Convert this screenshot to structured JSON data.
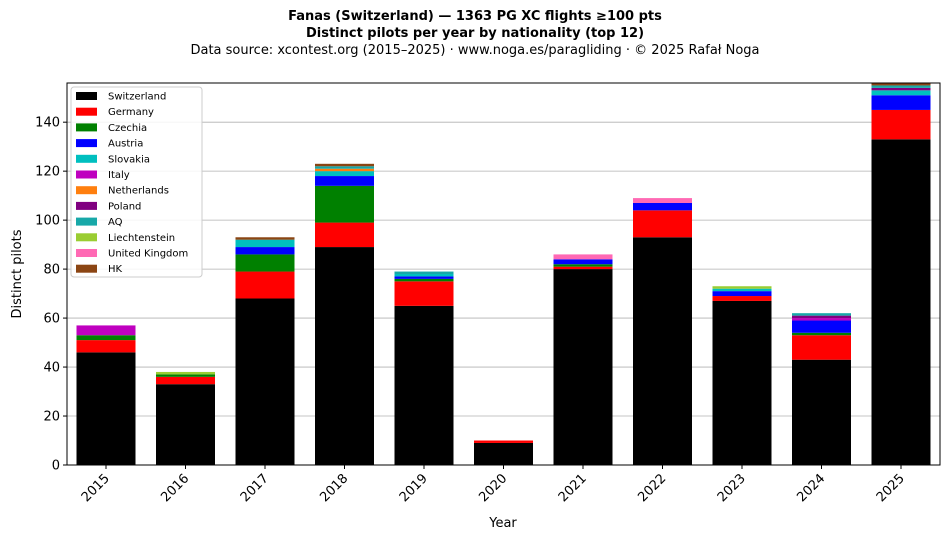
{
  "chart_data": {
    "type": "bar",
    "stacked": true,
    "title": "Fanas (Switzerland)  —  1363 PG XC flights ≥100 pts",
    "subtitle": "Distinct pilots per year by nationality (top 12)",
    "source": "Data source: xcontest.org (2015–2025)  ·  www.noga.es/paragliding  ·  © 2025 Rafał Noga",
    "xlabel": "Year",
    "ylabel": "Distinct pilots",
    "ylim": [
      0,
      156
    ],
    "yticks": [
      0,
      20,
      40,
      60,
      80,
      100,
      120,
      140
    ],
    "grid": "horizontal",
    "legend_position": "top-left",
    "categories": [
      "2015",
      "2016",
      "2017",
      "2018",
      "2019",
      "2020",
      "2021",
      "2022",
      "2023",
      "2024",
      "2025"
    ],
    "series": [
      {
        "name": "Switzerland",
        "color": "#000000",
        "values": [
          46,
          33,
          68,
          89,
          65,
          9,
          80,
          93,
          67,
          43,
          133
        ]
      },
      {
        "name": "Germany",
        "color": "#ff0000",
        "values": [
          5,
          3,
          11,
          10,
          10,
          1,
          1,
          11,
          2,
          10,
          12
        ]
      },
      {
        "name": "Czechia",
        "color": "#008000",
        "values": [
          2,
          1,
          7,
          15,
          1,
          0,
          1,
          0,
          0,
          1,
          0
        ]
      },
      {
        "name": "Austria",
        "color": "#0000ff",
        "values": [
          0,
          0,
          3,
          4,
          1,
          0,
          2,
          3,
          2,
          5,
          6
        ]
      },
      {
        "name": "Slovakia",
        "color": "#00bfbf",
        "values": [
          0,
          0,
          3,
          2,
          1,
          0,
          0,
          0,
          1,
          0,
          2
        ]
      },
      {
        "name": "Italy",
        "color": "#bf00bf",
        "values": [
          4,
          0,
          0,
          0,
          0,
          0,
          0,
          0,
          0,
          1,
          0
        ]
      },
      {
        "name": "Netherlands",
        "color": "#ff7f0e",
        "values": [
          0,
          0,
          0,
          1,
          0,
          0,
          0,
          0,
          0,
          0,
          0
        ]
      },
      {
        "name": "Poland",
        "color": "#800080",
        "values": [
          0,
          0,
          0,
          0,
          0,
          0,
          0,
          0,
          0,
          1,
          1
        ]
      },
      {
        "name": "AQ",
        "color": "#17a8a8",
        "values": [
          0,
          0,
          0,
          1,
          1,
          0,
          0,
          0,
          0,
          1,
          1
        ]
      },
      {
        "name": "Liechtenstein",
        "color": "#9acd32",
        "values": [
          0,
          1,
          0,
          0,
          0,
          0,
          0,
          0,
          1,
          0,
          0
        ]
      },
      {
        "name": "United Kingdom",
        "color": "#ff69b4",
        "values": [
          0,
          0,
          0,
          0,
          0,
          0,
          2,
          2,
          0,
          0,
          0
        ]
      },
      {
        "name": "HK",
        "color": "#8b4513",
        "values": [
          0,
          0,
          1,
          1,
          0,
          0,
          0,
          0,
          0,
          0,
          1
        ]
      }
    ]
  }
}
